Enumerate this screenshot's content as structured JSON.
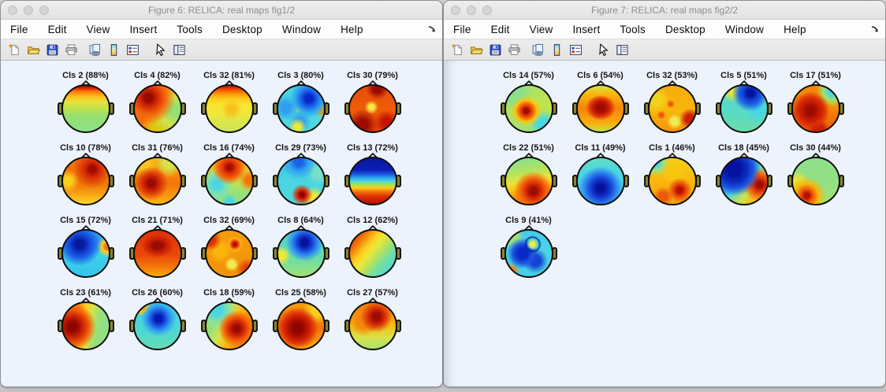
{
  "colors": {
    "canvas_bg": "#edf3fc",
    "titlebar_text": "#8d8d8d",
    "label_text": "#151515"
  },
  "menu": {
    "items": [
      "File",
      "Edit",
      "View",
      "Insert",
      "Tools",
      "Desktop",
      "Window",
      "Help"
    ]
  },
  "toolbar": {
    "buttons": [
      {
        "name": "new-figure",
        "title": "New Figure"
      },
      {
        "name": "open-file",
        "title": "Open File"
      },
      {
        "name": "save-figure",
        "title": "Save Figure"
      },
      {
        "name": "print-figure",
        "title": "Print Figure"
      },
      {
        "name": "link-plot",
        "title": "Link Plot"
      },
      {
        "name": "insert-colorbar",
        "title": "Insert Colorbar"
      },
      {
        "name": "insert-legend",
        "title": "Insert Legend"
      },
      {
        "name": "edit-plot",
        "title": "Edit Plot"
      },
      {
        "name": "plot-tools",
        "title": "Show Plot Tools"
      }
    ]
  },
  "windows": [
    {
      "title": "Figure 6: RELICA: real maps fig1/2",
      "maps": [
        {
          "label": "Cls 2 (88%)",
          "bg": "linear-gradient(180deg,#8f0500 0%,#e03008 6%,#fb7d07 13%,#fcc21f 24%,#e6e23c 36%,#c2e34a 48%,#97e070 66%,#8ae08d 100%)"
        },
        {
          "label": "Cls 4 (82%)",
          "bg": "radial-gradient(circle at 30% 26%,#960a00 8%,#d62a06 20%,#f4650a 36%,rgba(0,0,0,0) 58%),radial-gradient(circle at 88% 55%,#97e070 12%,#cfe44a 30%,rgba(0,0,0,0) 52%),radial-gradient(circle at 55% 90%,#d8c918 10%,rgba(0,0,0,0) 35%),linear-gradient(115deg,#f4740a 35%,#fcb113 60%,#cfe44a 88%)"
        },
        {
          "label": "Cls 32 (81%)",
          "bg": "radial-gradient(circle at 55% 52%,rgba(252,160,10,.55) 10%,rgba(0,0,0,0) 30%),linear-gradient(180deg,#b80f00 0%,#ef4c08 8%,#fb9407 17%,#fcce1d 29%,#f7e531 42%,#f2e83a 58%,#dde74a 78%,#cce455 100%)"
        },
        {
          "label": "Cls 3 (80%)",
          "bg": "radial-gradient(circle at 67% 28%,#0726c8 8%,#1b62e8 18%,#2fa6f0 30%,rgba(0,0,0,0) 44%),radial-gradient(circle at 46% 50%,#ece83a 5%,rgba(0,0,0,0) 14%),radial-gradient(circle at 42% 90%,#ece83a 6%,rgba(0,0,0,0) 18%),radial-gradient(circle at 97% 52%,#f59d0a 6%,rgba(0,0,0,0) 16%),radial-gradient(circle at 16% 48%,#2f9ef0 10%,rgba(0,0,0,0) 30%),radial-gradient(circle at 48% 78%,#2f9ef0 8%,rgba(0,0,0,0) 26%),linear-gradient(180deg,#45d2e8 0%,#52dcd8 55%,#49d6e2 100%)"
        },
        {
          "label": "Cls 30 (79%)",
          "bg": "radial-gradient(circle at 47% 47%,#f7e741 8%,rgba(0,0,0,0) 20%),radial-gradient(circle at 28% 85%,#9c0b00 10%,rgba(0,0,0,0) 30%),radial-gradient(circle at 60% 6%,#9c0b00 8%,rgba(0,0,0,0) 22%),radial-gradient(circle at 80% 80%,#c41400 8%,rgba(0,0,0,0) 24%),linear-gradient(180deg,#e84a08 0%,#ef5d08 50%,#e8480a 100%)"
        },
        {
          "label": "Cls 10 (78%)",
          "bg": "radial-gradient(circle at 64% 24%,#a00c00 7%,#da2c06 18%,rgba(0,0,0,0) 42%),radial-gradient(circle at 10% 50%,#fcd21f 8%,rgba(0,0,0,0) 24%),linear-gradient(180deg,#f0720a 0%,#f07c08 60%,#fcc21f 92%,#f7e531 100%)"
        },
        {
          "label": "Cls 31 (76%)",
          "bg": "radial-gradient(circle at 36% 55%,#9c0b00 9%,#d62a06 22%,rgba(0,0,0,0) 44%),radial-gradient(circle at 75% 10%,#d8e24a 10%,rgba(0,0,0,0) 28%),radial-gradient(circle at 20% 12%,#fcc21f 10%,rgba(0,0,0,0) 28%),linear-gradient(180deg,#f7a30c 0%,#f4740a 55%,#fcb113 100%)"
        },
        {
          "label": "Cls 16 (74%)",
          "bg": "radial-gradient(circle at 50% 20%,#a80d00 6%,#dd2f06 14%,#f4650a 26%,rgba(0,0,0,0) 40%),radial-gradient(circle at 22% 58%,#49d6e2 8%,#7adfb8 20%,rgba(0,0,0,0) 38%),radial-gradient(circle at 94% 48%,#f4740a 8%,rgba(0,0,0,0) 22%),radial-gradient(circle at 50% 95%,#49d6e2 6%,rgba(0,0,0,0) 16%),linear-gradient(180deg,#f9b60c 8%,#cfe44a 45%,#93e07c 80%)"
        },
        {
          "label": "Cls 29 (73%)",
          "bg": "radial-gradient(circle at 45% 8%,#1b62e8 8%,#2fa6f0 20%,rgba(0,0,0,0) 36%),radial-gradient(circle at 52% 80%,#8f0500 5%,#dd2f06 12%,rgba(0,0,0,0) 24%),radial-gradient(circle at 78% 88%,#ece83a 8%,rgba(0,0,0,0) 22%),radial-gradient(circle at 88% 30%,#7adfc8 10%,rgba(0,0,0,0) 26%),linear-gradient(180deg,#3fc0ec 0%,#49d6e2 50%,#4fd8d8 100%)"
        },
        {
          "label": "Cls 13 (72%)",
          "bg": "linear-gradient(180deg,#0a17a0 0%,#0c20b4 26%,#1b55e0 35%,#2fa6f0 43%,#49d6e2 50%,#a8e24a 58%,#fcce1d 65%,#f4740a 73%,#dd2f06 84%,#b80f00 100%)"
        },
        {
          "label": "Cls 15 (72%)",
          "bg": "radial-gradient(circle at 36% 30%,#061a9e 10%,#1442d4 22%,#1b62e8 32%,rgba(0,0,0,0) 50%),radial-gradient(circle at 97% 35%,#f4740a 5%,#fcce1d 10%,rgba(0,0,0,0) 20%),radial-gradient(circle at 70% 18%,#2fa6f0 10%,rgba(0,0,0,0) 30%),linear-gradient(180deg,#35b4ec 0%,#3fd0e8 55%,#35c4ec 100%)"
        },
        {
          "label": "Cls 21 (71%)",
          "bg": "radial-gradient(55% 40% at 50% 33%,#9c0b00 18%,#cc2205 40%,rgba(0,0,0,0) 65%),linear-gradient(180deg,#e03008 0%,#ea4a08 55%,#f4850a 85%,#f9ad0c 100%)"
        },
        {
          "label": "Cls 32 (69%)",
          "bg": "radial-gradient(circle at 62% 30%,#b80f00 4%,#f4500a 9%,#fcb113 14%,rgba(0,0,0,0) 20%),radial-gradient(circle at 55% 74%,#f2ea52 8%,rgba(0,0,0,0) 17%),radial-gradient(circle at 8% 20%,#dd2f06 8%,rgba(0,0,0,0) 20%),radial-gradient(circle at 90% 85%,#e8430a 8%,rgba(0,0,0,0) 20%),radial-gradient(circle at 30% 45%,#f9b60c 12%,rgba(0,0,0,0) 30%),linear-gradient(180deg,#f59d0a 0%,#f2930a 100%)"
        },
        {
          "label": "Cls 8 (64%)",
          "bg": "radial-gradient(circle at 58% 26%,#06129e 8%,#1442d4 18%,#2f8ef0 30%,rgba(0,0,0,0) 44%),radial-gradient(circle at 6% 55%,#ece83a 8%,rgba(0,0,0,0) 20%),linear-gradient(180deg,#4cd2d8 0%,#63dcaf 55%,#8ce08a 85%,#a5e270 100%)"
        },
        {
          "label": "Cls 12 (62%)",
          "bg": "linear-gradient(130deg,#c41400 0%,#e8430a 12%,#f4850a 24%,#fcce1d 36%,#ece83a 46%,#b5e25c 58%,#77dfa0 70%,#55dac8 85%,#49d6e2 100%)"
        },
        {
          "label": "Cls 23 (61%)",
          "bg": "radial-gradient(circle at 20% 52%,#8f0500 10%,#c92005 24%,#ef5808 38%,rgba(0,0,0,0) 55%),linear-gradient(100deg,#f4850a 28%,#fcce1d 44%,#d8e24a 56%,#97e07c 72%,#8ce08a 100%)"
        },
        {
          "label": "Cls 26 (60%)",
          "bg": "radial-gradient(circle at 52% 34%,#0618b4 9%,#1b55e0 20%,#2f9ef0 32%,rgba(0,0,0,0) 46%),radial-gradient(circle at 14% 6%,#f4850a 5%,#fcce1d 10%,rgba(0,0,0,0) 18%),linear-gradient(180deg,#45d0e8 0%,#4fd8d2 60%,#63dcb4 100%)"
        },
        {
          "label": "Cls 18 (59%)",
          "bg": "radial-gradient(circle at 66% 56%,#9c0b00 8%,#d62a06 20%,#f4650a 32%,rgba(0,0,0,0) 46%),radial-gradient(circle at 22% 14%,#49d6e2 10%,#8fe09a 24%,rgba(0,0,0,0) 38%),linear-gradient(115deg,#97e07c 25%,#d8e24a 42%,#f9b60c 58%,#f4850a 80%)"
        },
        {
          "label": "Cls 25 (58%)",
          "bg": "radial-gradient(circle at 42% 55%,#8f0500 12%,#b81200 26%,#dd2f06 40%,rgba(0,0,0,0) 58%),radial-gradient(circle at 85% 15%,#fcce1d 10%,rgba(0,0,0,0) 26%),linear-gradient(180deg,#f79d0c 0%,#f4740a 55%,#f9ad0c 100%)"
        },
        {
          "label": "Cls 27 (57%)",
          "bg": "radial-gradient(circle at 58% 30%,#9c0b00 8%,#d62a06 20%,rgba(0,0,0,0) 38%),radial-gradient(circle at 30% 40%,#f4850a 15%,rgba(0,0,0,0) 35%),linear-gradient(180deg,#f4850a 15%,#f9b60c 45%,#d8e24a 75%,#abe26b 100%)"
        }
      ]
    },
    {
      "title": "Figure 7: RELICA: real maps fig2/2",
      "maps": [
        {
          "label": "Cls 14 (57%)",
          "bg": "radial-gradient(circle at 44% 55%,#a00c00 6%,#dd2f06 13%,#f4740a 22%,#f9c60e 30%,rgba(0,0,0,0) 42%),radial-gradient(circle at 82% 85%,#49d6e2 10%,rgba(0,0,0,0) 26%),radial-gradient(circle at 20% 20%,#8ce08a 15%,rgba(0,0,0,0) 35%),linear-gradient(180deg,#a5e26b 0%,#c2e34a 40%,#9fe07c 100%)"
        },
        {
          "label": "Cls 6 (54%)",
          "bg": "radial-gradient(50% 42% at 50% 48%,#9c0b00 16%,#c41a02 34%,#e8430a 50%,rgba(0,0,0,0) 66%),linear-gradient(180deg,#d8e24a 0%,#f9b60c 18%,#f4850a 50%,#f9ad0c 82%,#c2e34a 100%)"
        },
        {
          "label": "Cls 32 (53%)",
          "bg": "radial-gradient(circle at 46% 40%,#ef5808 5%,rgba(0,0,0,0) 11%),radial-gradient(circle at 26% 64%,#ef5808 4%,rgba(0,0,0,0) 10%),radial-gradient(circle at 88% 72%,#c92005 8%,rgba(0,0,0,0) 20%),radial-gradient(circle at 55% 78%,#f2ea52 8%,rgba(0,0,0,0) 18%),radial-gradient(circle at 15% 30%,#f2d21d 10%,rgba(0,0,0,0) 26%),linear-gradient(180deg,#f7ab0c 0%,#f9b60c 55%,#f4940a 100%)"
        },
        {
          "label": "Cls 5 (51%)",
          "bg": "radial-gradient(circle at 64% 16%,#06129e 7%,#1442d4 16%,#1b62e8 24%,rgba(0,0,0,0) 38%),radial-gradient(circle at 26% 8%,#ece83a 6%,#cfe44a 12%,rgba(0,0,0,0) 24%),radial-gradient(circle at 80% 55%,#49d6e2 10%,rgba(0,0,0,0) 30%),linear-gradient(180deg,#5fd9c4 0%,#55dac8 50%,#6bdcab 100%)"
        },
        {
          "label": "Cls 17 (51%)",
          "bg": "radial-gradient(circle at 38% 55%,#9c0b00 10%,#c41a02 24%,#dd2f06 36%,rgba(0,0,0,0) 52%),radial-gradient(circle at 86% 12%,#49d6e2 7%,#a5e26b 16%,rgba(0,0,0,0) 28%),radial-gradient(circle at 55% 96%,#c92005 10%,rgba(0,0,0,0) 22%),linear-gradient(180deg,#f4850a 0%,#f2930a 40%,#ef5808 100%)"
        },
        {
          "label": "Cls 22 (51%)",
          "bg": "radial-gradient(circle at 60% 72%,#a00c00 8%,#d62a06 18%,#f4650a 30%,rgba(0,0,0,0) 46%),linear-gradient(170deg,#8ce08a 8%,#b5e25c 32%,#e8e43c 48%,#f9c60e 62%,#f4850a 80%)"
        },
        {
          "label": "Cls 11 (49%)",
          "bg": "radial-gradient(circle at 50% 66%,#06129e 10%,#1030c4 22%,#1b55e0 32%,#2f8ef0 44%,rgba(0,0,0,0) 58%),linear-gradient(180deg,#63dcc8 0%,#49d6e2 35%,#3fb4ec 100%)"
        },
        {
          "label": "Cls 1 (46%)",
          "bg": "radial-gradient(circle at 14% 10%,#49d6e2 6%,#9fe07c 13%,rgba(0,0,0,0) 24%),radial-gradient(circle at 66% 70%,#b80f00 6%,#e8430a 14%,rgba(0,0,0,0) 28%),radial-gradient(circle at 30% 84%,#ef5808 8%,rgba(0,0,0,0) 20%),radial-gradient(circle at 55% 30%,#f9c60e 14%,rgba(0,0,0,0) 34%),linear-gradient(180deg,#f2d21d 0%,#f9b60c 50%,#f2a30c 100%)"
        },
        {
          "label": "Cls 18 (45%)",
          "bg": "radial-gradient(circle at 28% 24%,#06129e 14%,#0c2cc0 28%,#1b55e0 40%,rgba(0,0,0,0) 56%),radial-gradient(circle at 84% 58%,#a00c00 6%,#dd2f06 14%,#f4740a 24%,rgba(0,0,0,0) 36%),linear-gradient(135deg,#2f8ef0 25%,#49d6e2 48%,#cfe44a 68%,#f9b60c 84%)"
        },
        {
          "label": "Cls 30 (44%)",
          "bg": "radial-gradient(circle at 30% 82%,#b80f00 5%,#ef5808 13%,#f9b60c 24%,rgba(0,0,0,0) 38%),radial-gradient(circle at 10% 55%,#e8e43c 10%,rgba(0,0,0,0) 26%),linear-gradient(180deg,#8ce08a 0%,#93e084 55%,#a5e26b 100%)"
        },
        {
          "label": "Cls 9 (41%)",
          "bg": "radial-gradient(circle at 58% 30%,#f2ea52 5%,#a5e26b 9%,rgba(0,0,0,0) 13%),radial-gradient(circle at 58% 30%,rgba(0,0,0,0) 14%,rgba(6,30,150,.85) 17%,rgba(0,0,0,0) 21%),radial-gradient(circle at 36% 50%,#0a2ac8 14%,#1b55e0 26%,rgba(0,0,0,0) 42%),radial-gradient(circle at 64% 66%,#1442d4 12%,rgba(0,0,0,0) 30%),radial-gradient(circle at 14% 14%,#9fe07c 8%,rgba(0,0,0,0) 22%),radial-gradient(circle at 12% 88%,#f4850a 5%,rgba(0,0,0,0) 14%),linear-gradient(180deg,#45c8ea 0%,#49d6e2 50%,#45cfe6 100%)"
        }
      ]
    }
  ]
}
